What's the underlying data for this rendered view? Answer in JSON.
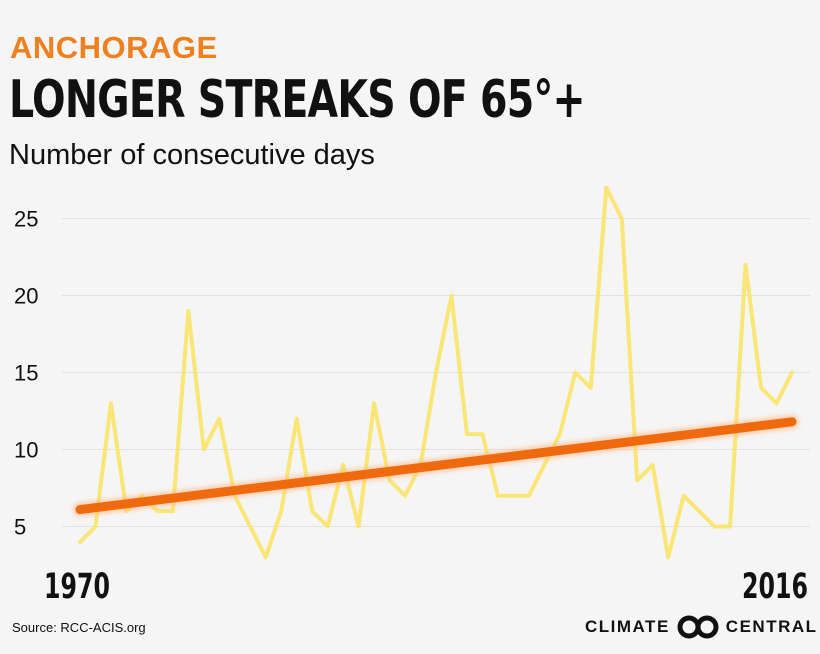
{
  "header": {
    "kicker": "ANCHORAGE",
    "title": "LONGER STREAKS OF 65°+",
    "subtitle": "Number of consecutive days"
  },
  "footer": {
    "source": "Source: RCC-ACIS.org",
    "brand_left": "CLIMATE",
    "brand_right": "CENTRAL",
    "logo_icon": "climate-central-logo-icon"
  },
  "colors": {
    "series": "#f9e677",
    "trend": "#ef6a0f",
    "accent": "#f07f1e",
    "grid": "#e2e2e2"
  },
  "chart_data": {
    "type": "line",
    "title": "LONGER STREAKS OF 65°+",
    "ylabel": "Number of consecutive days",
    "x": [
      1970,
      1971,
      1972,
      1973,
      1974,
      1975,
      1976,
      1977,
      1978,
      1979,
      1980,
      1981,
      1982,
      1983,
      1984,
      1985,
      1986,
      1987,
      1988,
      1989,
      1990,
      1991,
      1992,
      1993,
      1994,
      1995,
      1996,
      1997,
      1998,
      1999,
      2000,
      2001,
      2002,
      2003,
      2004,
      2005,
      2006,
      2007,
      2008,
      2009,
      2010,
      2011,
      2012,
      2013,
      2014,
      2015,
      2016
    ],
    "x_tick_labels": [
      "1970",
      "2016"
    ],
    "ylim": [
      2.5,
      27.5
    ],
    "yticks": [
      5,
      10,
      15,
      20,
      25
    ],
    "grid": true,
    "series": [
      {
        "values": [
          4,
          5,
          13,
          6,
          7,
          6,
          6,
          19,
          10,
          12,
          7,
          5,
          3,
          6,
          12,
          6,
          5,
          9,
          5,
          13,
          8,
          7,
          9,
          15,
          20,
          11,
          11,
          7,
          7,
          7,
          9,
          11,
          15,
          14,
          27,
          25,
          8,
          9,
          3,
          7,
          6,
          5,
          5,
          22,
          14,
          13,
          15
        ]
      }
    ],
    "trend": {
      "start": [
        1970,
        6.1
      ],
      "end": [
        2016,
        11.8
      ]
    }
  }
}
